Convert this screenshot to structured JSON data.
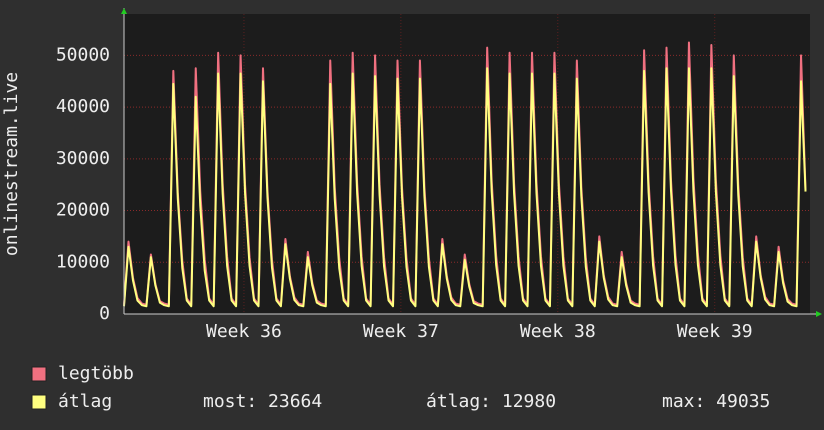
{
  "chart_data": {
    "type": "line",
    "y_label": "onlinestream.live",
    "xlim": [
      0,
      30.6
    ],
    "xticks": [
      {
        "value": 5.35,
        "label": "Week 36"
      },
      {
        "value": 12.35,
        "label": "Week 37"
      },
      {
        "value": 19.35,
        "label": "Week 38"
      },
      {
        "value": 26.35,
        "label": "Week 39"
      }
    ],
    "ylim": [
      0,
      58000
    ],
    "yticks": [
      0,
      10000,
      20000,
      30000,
      40000,
      50000
    ],
    "grid": true,
    "x": [
      0,
      0.2,
      0.4,
      0.6,
      0.8,
      1,
      1.2,
      1.4,
      1.6,
      1.8,
      2,
      2.2,
      2.4,
      2.6,
      2.8,
      3,
      3.2,
      3.4,
      3.6,
      3.8,
      4,
      4.2,
      4.4,
      4.6,
      4.8,
      5,
      5.2,
      5.4,
      5.6,
      5.8,
      6,
      6.2,
      6.4,
      6.6,
      6.8,
      7,
      7.2,
      7.4,
      7.6,
      7.8,
      8,
      8.2,
      8.4,
      8.6,
      8.8,
      9,
      9.2,
      9.4,
      9.6,
      9.8,
      10,
      10.2,
      10.4,
      10.6,
      10.8,
      11,
      11.2,
      11.4,
      11.6,
      11.8,
      12,
      12.2,
      12.4,
      12.6,
      12.8,
      13,
      13.2,
      13.4,
      13.6,
      13.8,
      14,
      14.2,
      14.4,
      14.6,
      14.8,
      15,
      15.2,
      15.4,
      15.6,
      15.8,
      16,
      16.2,
      16.4,
      16.6,
      16.8,
      17,
      17.2,
      17.4,
      17.6,
      17.8,
      18,
      18.2,
      18.4,
      18.6,
      18.8,
      19,
      19.2,
      19.4,
      19.6,
      19.8,
      20,
      20.2,
      20.4,
      20.6,
      20.8,
      21,
      21.2,
      21.4,
      21.6,
      21.8,
      22,
      22.2,
      22.4,
      22.6,
      22.8,
      23,
      23.2,
      23.4,
      23.6,
      23.8,
      24,
      24.2,
      24.4,
      24.6,
      24.8,
      25,
      25.2,
      25.4,
      25.6,
      25.8,
      26,
      26.2,
      26.4,
      26.6,
      26.8,
      27,
      27.2,
      27.4,
      27.6,
      27.8,
      28,
      28.2,
      28.4,
      28.6,
      28.8,
      29,
      29.2,
      29.4,
      29.6,
      29.8,
      30,
      30.2,
      30.4
    ],
    "series": [
      {
        "name": "legtöbb",
        "color": "#f07080",
        "values": [
          1800,
          14000,
          7000,
          3100,
          2000,
          1800,
          11500,
          5800,
          2500,
          2000,
          1800,
          47000,
          23500,
          10300,
          3000,
          1800,
          47500,
          23800,
          10500,
          3000,
          1800,
          50500,
          25300,
          11100,
          3000,
          1800,
          50000,
          25000,
          11000,
          3000,
          1800,
          47500,
          23800,
          10500,
          3000,
          1800,
          14500,
          7300,
          3200,
          2000,
          1800,
          12000,
          6000,
          2600,
          2000,
          1800,
          49000,
          24500,
          10800,
          3000,
          1800,
          50500,
          25300,
          11100,
          3000,
          1800,
          50000,
          25000,
          11000,
          3000,
          1800,
          49000,
          24500,
          10800,
          3000,
          1800,
          49000,
          24500,
          10800,
          3000,
          1800,
          14500,
          7300,
          3200,
          2000,
          1800,
          11500,
          5800,
          2500,
          2000,
          1800,
          51500,
          25800,
          11300,
          3000,
          1800,
          50500,
          25300,
          11100,
          3000,
          1800,
          50500,
          25300,
          11100,
          3000,
          1800,
          50500,
          25300,
          11100,
          3000,
          1800,
          49000,
          24500,
          10800,
          3000,
          1800,
          15000,
          7500,
          3300,
          2000,
          1800,
          12000,
          6000,
          2600,
          2000,
          1800,
          51000,
          25500,
          11200,
          3000,
          1800,
          51500,
          25800,
          11300,
          3000,
          1800,
          52500,
          26300,
          11600,
          3000,
          1800,
          52000,
          26000,
          11400,
          3000,
          1800,
          50000,
          25000,
          11000,
          3000,
          1800,
          15000,
          7500,
          3300,
          2000,
          1800,
          13000,
          6500,
          2900,
          2000,
          1800,
          50000,
          24000
        ]
      },
      {
        "name": "átlag",
        "color": "#ffff80",
        "values": [
          1500,
          13000,
          6500,
          2600,
          1700,
          1500,
          11000,
          5500,
          2200,
          1700,
          1500,
          44500,
          22300,
          8900,
          2600,
          1500,
          42000,
          21000,
          8400,
          2600,
          1500,
          46500,
          23300,
          9300,
          2600,
          1500,
          46500,
          23300,
          9300,
          2600,
          1500,
          45000,
          22500,
          9000,
          2600,
          1500,
          13500,
          6800,
          2700,
          1700,
          1500,
          11000,
          5500,
          2200,
          1700,
          1500,
          44500,
          22300,
          8900,
          2600,
          1500,
          46500,
          23300,
          9300,
          2600,
          1500,
          46000,
          23000,
          9200,
          2600,
          1500,
          45500,
          22800,
          9100,
          2600,
          1500,
          45500,
          22800,
          9100,
          2600,
          1500,
          13500,
          6800,
          2700,
          1700,
          1500,
          10500,
          5300,
          2100,
          1700,
          1500,
          47500,
          23800,
          9500,
          2600,
          1500,
          46500,
          23300,
          9300,
          2600,
          1500,
          46500,
          23300,
          9300,
          2600,
          1500,
          46500,
          23300,
          9300,
          2600,
          1500,
          45500,
          22800,
          9100,
          2600,
          1500,
          14000,
          7000,
          2800,
          1700,
          1500,
          11000,
          5500,
          2200,
          1700,
          1500,
          47000,
          23500,
          9400,
          2600,
          1500,
          47500,
          23800,
          9500,
          2600,
          1500,
          47500,
          23800,
          9500,
          2600,
          1500,
          47500,
          23800,
          9500,
          2600,
          1500,
          46000,
          23000,
          9200,
          2600,
          1500,
          14000,
          7000,
          2800,
          1700,
          1500,
          12000,
          6000,
          2400,
          1700,
          1500,
          45000,
          23664
        ]
      }
    ],
    "stats": [
      "most: 23664",
      "átlag: 12980",
      "max: 49035"
    ]
  }
}
